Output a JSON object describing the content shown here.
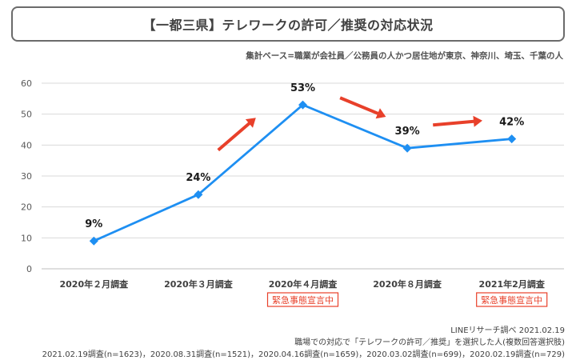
{
  "title": "【一都三県】テレワークの許可／推奨の対応状況",
  "basis_note": "集計ベース=職業が会社員／公務員の人かつ居住地が東京、神奈川、埼玉、千葉の人",
  "footer": {
    "source": "LINEリサーチ調べ 2021.02.19",
    "note": "職場での対応で「テレワークの許可／推奨」を選択した人(複数回答選択肢)",
    "samples": "2021.02.19調査(n=1623)，2020.08.31調査(n=1521)，2020.04.16調査(n=1659)，2020.03.02調査(n=699)，2020.02.19調査(n=729)"
  },
  "colors": {
    "line": "#1e8ff2",
    "arrow": "#e8402a",
    "badge": "#e8402a",
    "grid": "#d9d9d9"
  },
  "chart_data": {
    "type": "line",
    "categories": [
      "2020年２月調査",
      "2020年３月調査",
      "2020年４月調査",
      "2020年８月調査",
      "2021年2月調査"
    ],
    "values": [
      9,
      24,
      53,
      39,
      42
    ],
    "data_labels": [
      "9%",
      "24%",
      "53%",
      "39%",
      "42%"
    ],
    "ylim": [
      0,
      60
    ],
    "yticks": [
      0,
      10,
      20,
      30,
      40,
      50,
      60
    ],
    "grid": true,
    "marker": "diamond",
    "badges": [
      {
        "category_index": 2,
        "text": "緊急事態宣言中"
      },
      {
        "category_index": 4,
        "text": "緊急事態宣言中"
      }
    ],
    "arrows": [
      {
        "from_index": 1,
        "to_index": 2,
        "direction": "up"
      },
      {
        "from_index": 2,
        "to_index": 3,
        "direction": "down"
      },
      {
        "from_index": 3,
        "to_index": 4,
        "direction": "up"
      }
    ]
  }
}
